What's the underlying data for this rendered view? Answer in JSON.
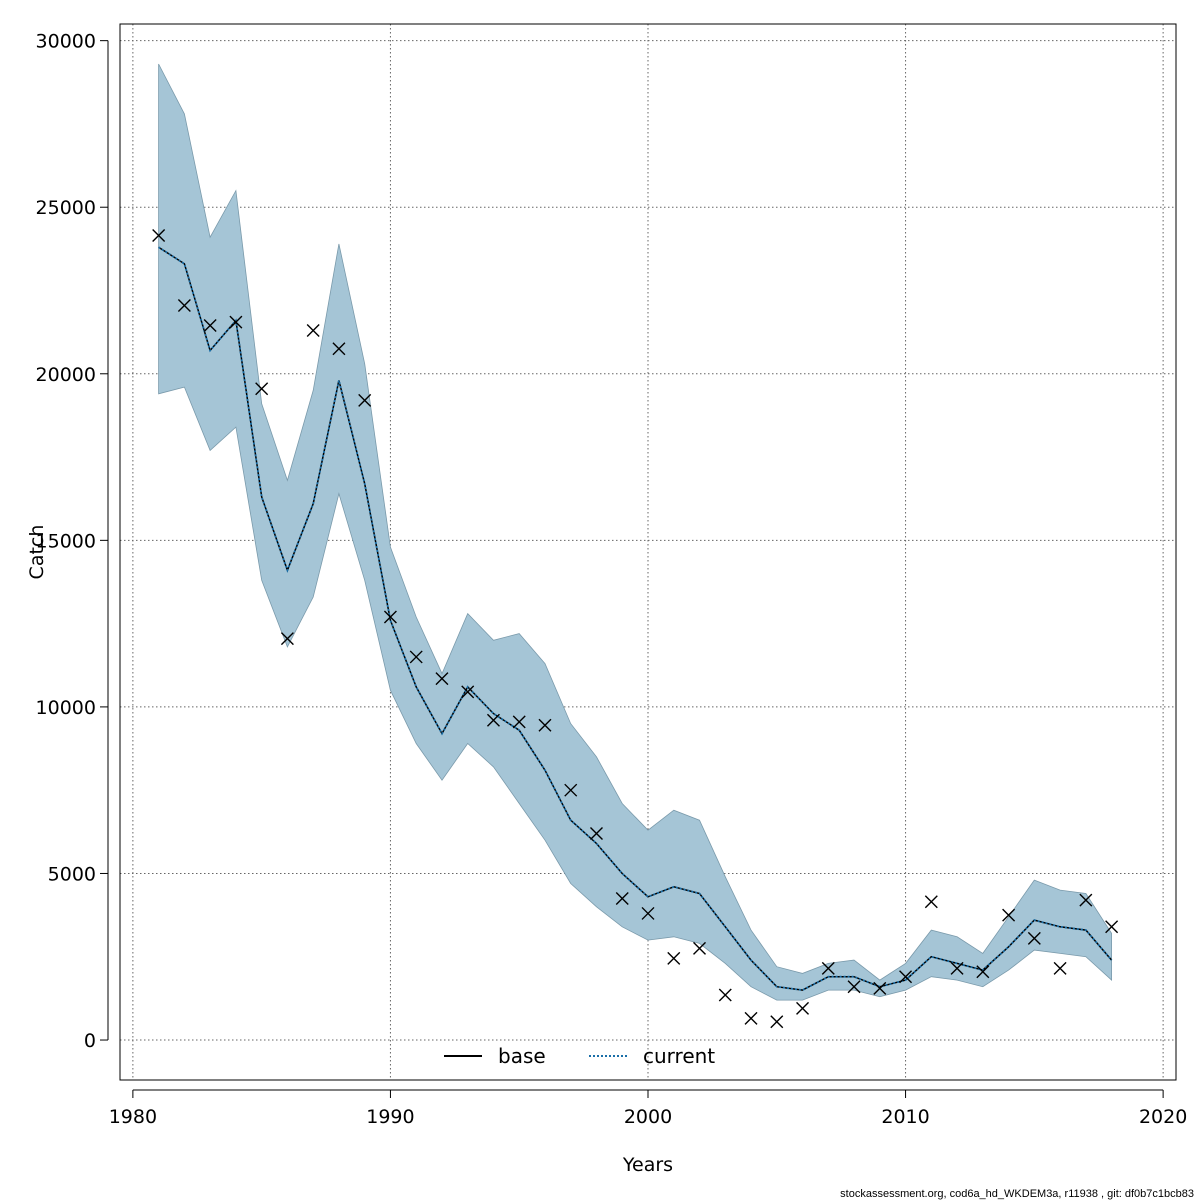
{
  "chart_data": {
    "type": "line",
    "xlabel": "Years",
    "ylabel": "Catch",
    "xlim": [
      1979.5,
      2020.5
    ],
    "ylim": [
      -1200,
      30500
    ],
    "x_ticks": [
      1980,
      1990,
      2000,
      2010,
      2020
    ],
    "y_ticks": [
      0,
      5000,
      10000,
      15000,
      20000,
      25000,
      30000
    ],
    "x_tick_labels": [
      "1980",
      "1990",
      "2000",
      "2010",
      "2020"
    ],
    "y_tick_labels": [
      "0",
      "5000",
      "10000",
      "15000",
      "20000",
      "25000",
      "30000"
    ],
    "grid": true,
    "legend_placement": "bottom-center",
    "years": [
      1981,
      1982,
      1983,
      1984,
      1985,
      1986,
      1987,
      1988,
      1989,
      1990,
      1991,
      1992,
      1993,
      1994,
      1995,
      1996,
      1997,
      1998,
      1999,
      2000,
      2001,
      2002,
      2003,
      2004,
      2005,
      2006,
      2007,
      2008,
      2009,
      2010,
      2011,
      2012,
      2013,
      2014,
      2015,
      2016,
      2017,
      2018
    ],
    "band": {
      "color": "#a5c5d6",
      "edge_color": "#7a9aab",
      "upper": [
        29300,
        27800,
        24100,
        25500,
        19100,
        16800,
        19500,
        23900,
        20300,
        14800,
        12700,
        11000,
        12800,
        12000,
        12200,
        11300,
        9500,
        8500,
        7100,
        6300,
        6900,
        6600,
        4900,
        3300,
        2200,
        2000,
        2300,
        2400,
        1800,
        2300,
        3300,
        3100,
        2600,
        3700,
        4800,
        4500,
        4400,
        3200
      ],
      "lower": [
        19400,
        19600,
        17700,
        18400,
        13800,
        11800,
        13300,
        16400,
        13800,
        10500,
        8900,
        7800,
        8900,
        8200,
        7100,
        6000,
        4700,
        4000,
        3400,
        3000,
        3100,
        2900,
        2300,
        1600,
        1200,
        1200,
        1500,
        1500,
        1300,
        1500,
        1900,
        1800,
        1600,
        2100,
        2700,
        2600,
        2500,
        1800
      ]
    },
    "series": [
      {
        "name": "base",
        "color": "#000000",
        "style": "solid",
        "values": [
          23800,
          23300,
          20700,
          21600,
          16300,
          14100,
          16100,
          19800,
          16700,
          12600,
          10600,
          9200,
          10600,
          9800,
          9300,
          8100,
          6600,
          5900,
          5000,
          4300,
          4600,
          4400,
          3400,
          2400,
          1600,
          1500,
          1900,
          1900,
          1600,
          1800,
          2500,
          2300,
          2100,
          2800,
          3600,
          3400,
          3300,
          2400
        ]
      },
      {
        "name": "current",
        "color": "#1a6fa8",
        "style": "dotted",
        "values": [
          23800,
          23300,
          20700,
          21600,
          16300,
          14100,
          16100,
          19800,
          16700,
          12600,
          10600,
          9200,
          10600,
          9800,
          9300,
          8100,
          6600,
          5900,
          5000,
          4300,
          4600,
          4400,
          3400,
          2400,
          1600,
          1500,
          1900,
          1900,
          1600,
          1800,
          2500,
          2300,
          2100,
          2800,
          3600,
          3400,
          3300,
          2400
        ]
      }
    ],
    "observations": {
      "marker": "x",
      "years": [
        1981,
        1982,
        1983,
        1984,
        1985,
        1986,
        1987,
        1988,
        1989,
        1990,
        1991,
        1992,
        1993,
        1994,
        1995,
        1996,
        1997,
        1998,
        1999,
        2000,
        2001,
        2002,
        2003,
        2004,
        2005,
        2006,
        2007,
        2008,
        2009,
        2010,
        2011,
        2012,
        2013,
        2014,
        2015,
        2016,
        2017,
        2018
      ],
      "values": [
        24150,
        22050,
        21450,
        21550,
        19550,
        12050,
        21300,
        20750,
        19200,
        12700,
        11500,
        10850,
        10450,
        9600,
        9550,
        9450,
        7500,
        6200,
        4250,
        3800,
        2450,
        2750,
        1350,
        650,
        550,
        950,
        2150,
        1600,
        1550,
        1900,
        4150,
        2150,
        2050,
        3750,
        3050,
        2150,
        4200,
        3400
      ]
    }
  },
  "footer": {
    "text": "stockassessment.org, cod6a_hd_WKDEM3a, r11938 , git: df0b7c1bcb83"
  }
}
